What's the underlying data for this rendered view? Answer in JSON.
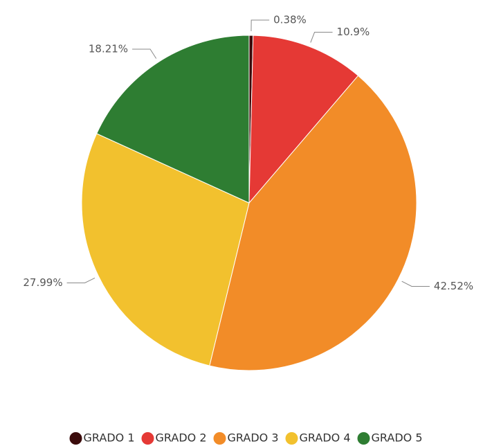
{
  "chart_data": {
    "type": "pie",
    "categories": [
      "GRADO 1",
      "GRADO 2",
      "GRADO 3",
      "GRADO 4",
      "GRADO 5"
    ],
    "values": [
      0.38,
      10.9,
      42.52,
      27.99,
      18.21
    ],
    "value_labels": [
      "0.38%",
      "10.9%",
      "42.52%",
      "27.99%",
      "18.21%"
    ],
    "colors": [
      "#3b0b0b",
      "#e53935",
      "#f28c28",
      "#f2c12e",
      "#2e7d32"
    ],
    "legend": "bottom"
  }
}
